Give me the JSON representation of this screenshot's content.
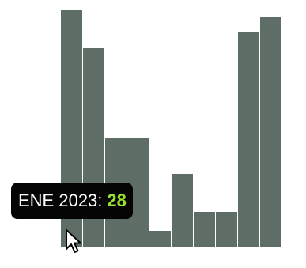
{
  "chart_data": {
    "type": "bar",
    "values": [
      100,
      84,
      46,
      46,
      7,
      31,
      15,
      15,
      91,
      97
    ],
    "ylim": [
      0,
      100
    ],
    "bar_color": "#5e6e67",
    "grid": false,
    "legend": "none"
  },
  "tooltip": {
    "label": "ENE 2023:",
    "value": "28",
    "label_color": "#ffffff",
    "value_color": "#9be32b",
    "background": "#050505"
  },
  "cursor": {
    "icon": "mouse-pointer-icon"
  }
}
